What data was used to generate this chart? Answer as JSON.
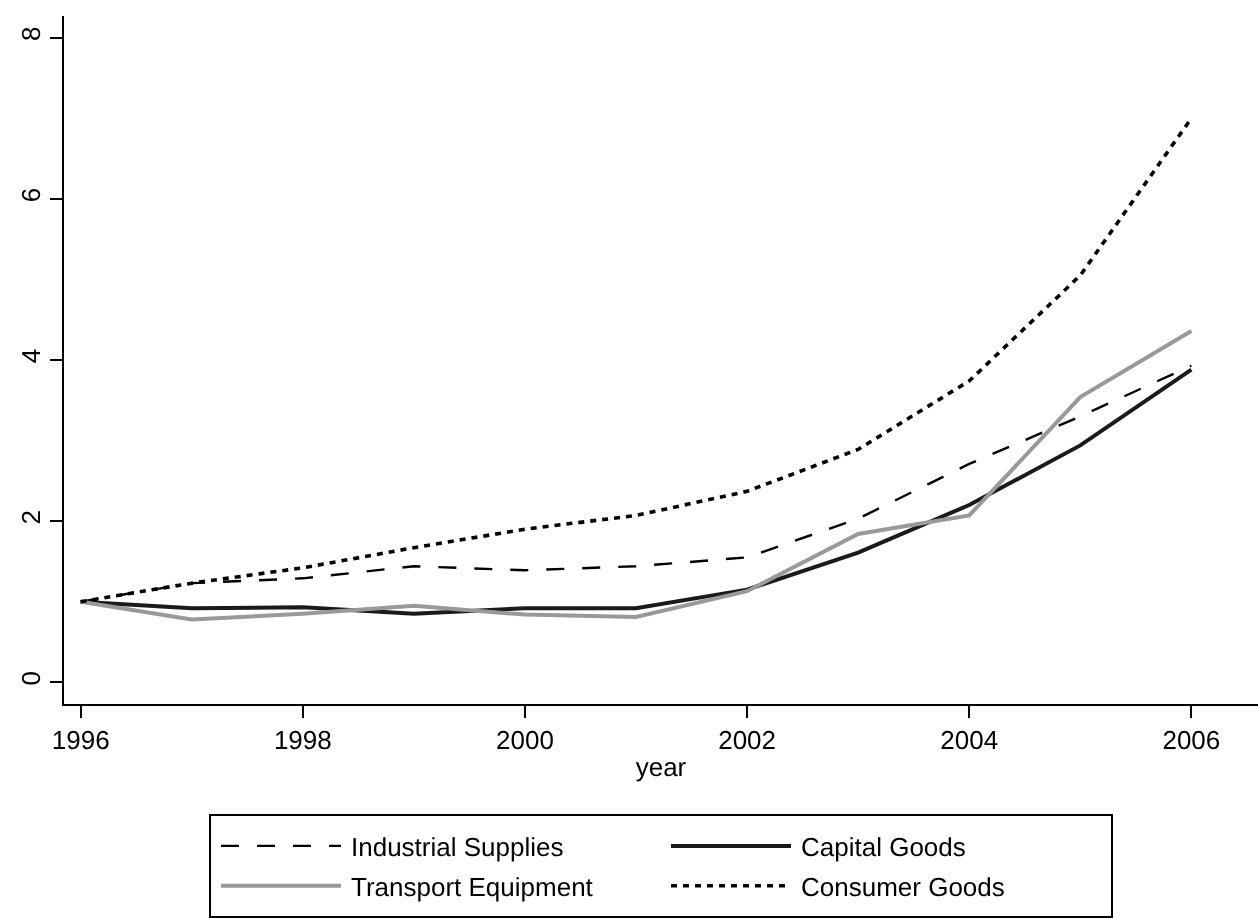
{
  "chart_data": {
    "type": "line",
    "xlabel": "year",
    "x": [
      1996,
      1997,
      1998,
      1999,
      2000,
      2001,
      2002,
      2003,
      2004,
      2005,
      2006
    ],
    "xlim": [
      1995.85,
      2006.6
    ],
    "xticks": [
      1996,
      1998,
      2000,
      2002,
      2004,
      2006
    ],
    "ylim": [
      -0.27,
      8.27
    ],
    "yticks": [
      0,
      2,
      4,
      6,
      8
    ],
    "grid": false,
    "legend": "bottom",
    "marker": "none",
    "series": [
      {
        "name": "Industrial Supplies",
        "color": "#000000",
        "line_style": "dashed",
        "values": [
          1.0,
          1.23,
          1.29,
          1.44,
          1.39,
          1.44,
          1.55,
          2.03,
          2.71,
          3.3,
          3.93
        ]
      },
      {
        "name": "Capital Goods",
        "color": "#1a1a1a",
        "line_style": "solid",
        "values": [
          1.0,
          0.92,
          0.93,
          0.85,
          0.92,
          0.92,
          1.15,
          1.61,
          2.2,
          2.94,
          3.88
        ]
      },
      {
        "name": "Transport Equipment",
        "color": "#999999",
        "line_style": "solid",
        "values": [
          1.0,
          0.78,
          0.85,
          0.95,
          0.84,
          0.81,
          1.13,
          1.84,
          2.07,
          3.54,
          4.36
        ]
      },
      {
        "name": "Consumer Goods",
        "color": "#000000",
        "line_style": "dotted",
        "values": [
          1.0,
          1.23,
          1.42,
          1.67,
          1.9,
          2.07,
          2.37,
          2.89,
          3.74,
          5.05,
          7.0
        ]
      }
    ]
  }
}
